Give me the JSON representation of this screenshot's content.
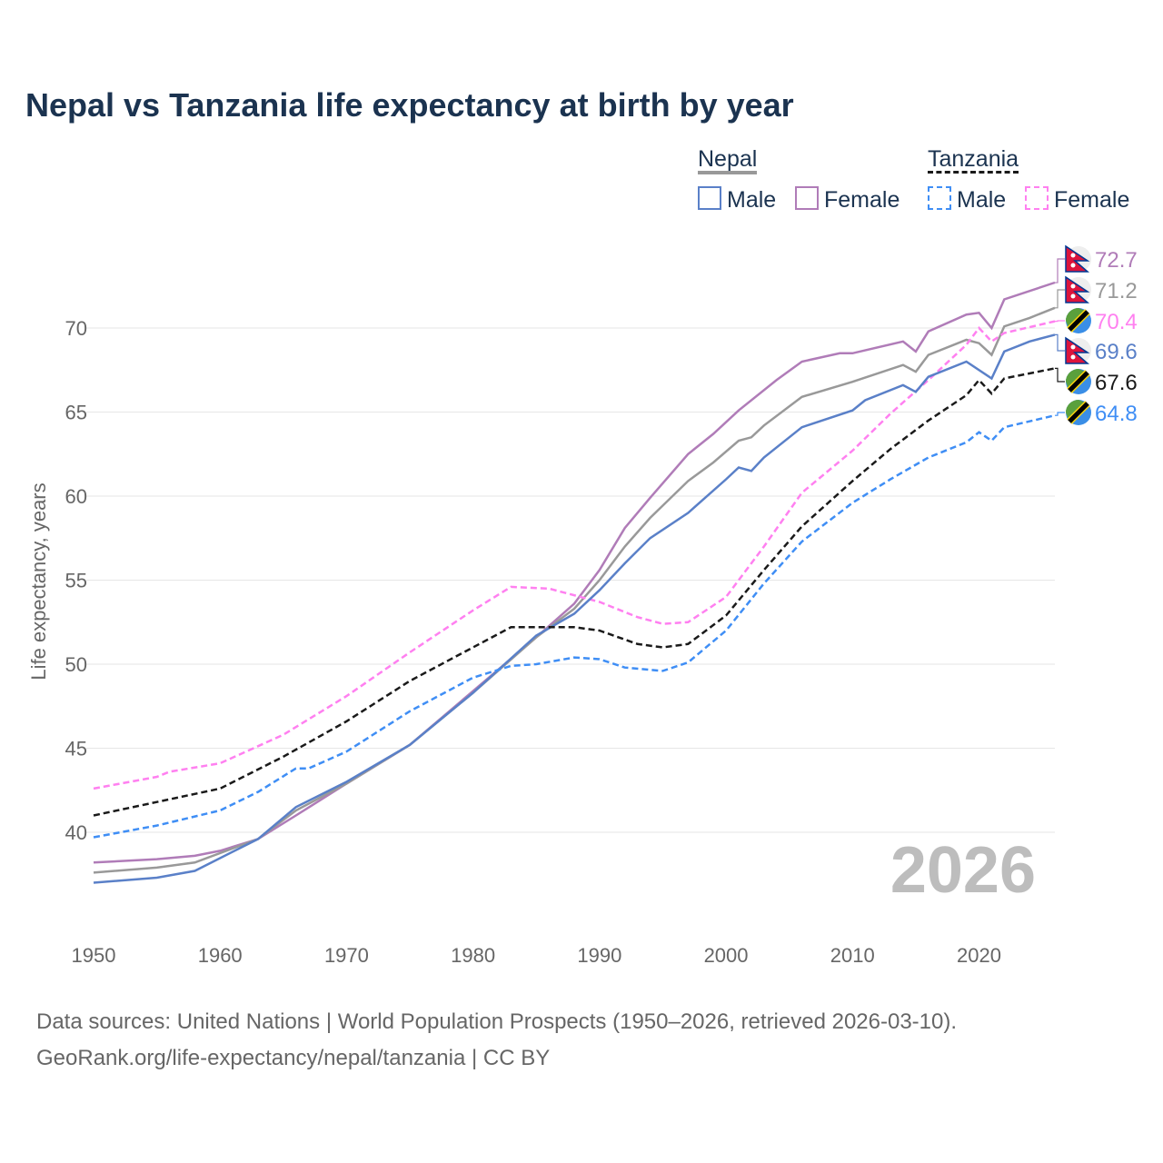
{
  "title": "Nepal vs Tanzania life expectancy at birth by year",
  "legend": {
    "nepal": "Nepal",
    "tanzania": "Tanzania",
    "male": "Male",
    "female": "Female"
  },
  "year_label": "2026",
  "source_line1": "Data sources: United Nations | World Population Prospects (1950–2026, retrieved 2026-03-10).",
  "source_line2": "GeoRank.org/life-expectancy/nepal/tanzania | CC BY",
  "chart_data": {
    "type": "line",
    "title": "Nepal vs Tanzania life expectancy at birth by year",
    "xlabel": "",
    "ylabel": "Life expectancy, years",
    "xlim": [
      1950,
      2026
    ],
    "ylim": [
      35,
      73
    ],
    "xticks": [
      1950,
      1960,
      1970,
      1980,
      1990,
      2000,
      2010,
      2020
    ],
    "yticks": [
      40,
      45,
      50,
      55,
      60,
      65,
      70
    ],
    "grid": true,
    "series": [
      {
        "name": "Nepal Female",
        "color": "#b07cb8",
        "dash": false,
        "end_label": "72.7",
        "flag": "nepal",
        "x": [
          1950,
          1955,
          1958,
          1960,
          1963,
          1966,
          1970,
          1975,
          1980,
          1985,
          1988,
          1990,
          1992,
          1994,
          1997,
          1999,
          2001,
          2004,
          2006,
          2009,
          2010,
          2014,
          2015,
          2016,
          2019,
          2020,
          2021,
          2022,
          2026
        ],
        "y": [
          38.2,
          38.4,
          38.6,
          38.9,
          39.6,
          41.0,
          42.9,
          45.2,
          48.4,
          51.6,
          53.6,
          55.6,
          58.1,
          59.9,
          62.5,
          63.7,
          65.1,
          66.9,
          68.0,
          68.5,
          68.5,
          69.2,
          68.6,
          69.8,
          70.8,
          70.9,
          70.0,
          71.7,
          72.7
        ]
      },
      {
        "name": "Nepal",
        "color": "#999999",
        "dash": false,
        "end_label": "71.2",
        "flag": "nepal",
        "x": [
          1950,
          1955,
          1958,
          1963,
          1966,
          1970,
          1975,
          1980,
          1985,
          1988,
          1990,
          1992,
          1994,
          1997,
          1999,
          2001,
          2002,
          2003,
          2006,
          2010,
          2014,
          2015,
          2016,
          2019,
          2020,
          2021,
          2022,
          2024,
          2026
        ],
        "y": [
          37.6,
          37.9,
          38.2,
          39.6,
          41.3,
          42.9,
          45.2,
          48.3,
          51.6,
          53.3,
          55.0,
          57.0,
          58.7,
          60.9,
          62.0,
          63.3,
          63.5,
          64.2,
          65.9,
          66.8,
          67.8,
          67.4,
          68.4,
          69.3,
          69.1,
          68.4,
          70.1,
          70.6,
          71.2
        ]
      },
      {
        "name": "Tanzania Female",
        "color": "#ff80f0",
        "dash": true,
        "end_label": "70.4",
        "flag": "tanzania",
        "x": [
          1950,
          1955,
          1956,
          1960,
          1965,
          1970,
          1975,
          1980,
          1983,
          1986,
          1990,
          1993,
          1995,
          1997,
          2000,
          2003,
          2006,
          2010,
          2013,
          2016,
          2019,
          2020,
          2021,
          2022,
          2026
        ],
        "y": [
          42.6,
          43.3,
          43.6,
          44.1,
          45.8,
          48.1,
          50.7,
          53.2,
          54.6,
          54.5,
          53.7,
          52.8,
          52.4,
          52.5,
          54.0,
          57.0,
          60.2,
          62.7,
          64.9,
          66.9,
          69.0,
          70.0,
          69.2,
          69.7,
          70.4
        ]
      },
      {
        "name": "Nepal Male",
        "color": "#5a80c8",
        "dash": false,
        "end_label": "69.6",
        "flag": "nepal",
        "x": [
          1950,
          1955,
          1958,
          1963,
          1966,
          1970,
          1975,
          1980,
          1985,
          1988,
          1990,
          1992,
          1994,
          1997,
          2000,
          2001,
          2002,
          2003,
          2006,
          2010,
          2011,
          2014,
          2015,
          2016,
          2019,
          2021,
          2022,
          2024,
          2026
        ],
        "y": [
          37.0,
          37.3,
          37.7,
          39.6,
          41.5,
          43.0,
          45.2,
          48.3,
          51.7,
          53.0,
          54.4,
          56.0,
          57.5,
          59.0,
          61.0,
          61.7,
          61.5,
          62.3,
          64.1,
          65.1,
          65.7,
          66.6,
          66.2,
          67.1,
          68.0,
          67.0,
          68.6,
          69.2,
          69.6
        ]
      },
      {
        "name": "Tanzania",
        "color": "#1a1a1a",
        "dash": true,
        "end_label": "67.6",
        "flag": "tanzania",
        "x": [
          1950,
          1955,
          1960,
          1965,
          1970,
          1975,
          1980,
          1983,
          1988,
          1990,
          1993,
          1995,
          1997,
          2000,
          2003,
          2006,
          2010,
          2013,
          2016,
          2019,
          2020,
          2021,
          2022,
          2026
        ],
        "y": [
          41.0,
          41.8,
          42.6,
          44.5,
          46.6,
          49.0,
          51.0,
          52.2,
          52.2,
          52.0,
          51.2,
          51.0,
          51.2,
          52.9,
          55.6,
          58.2,
          60.9,
          62.8,
          64.5,
          66.0,
          66.9,
          66.1,
          67.0,
          67.6
        ]
      },
      {
        "name": "Tanzania Male",
        "color": "#3f8ef5",
        "dash": true,
        "end_label": "64.8",
        "flag": "tanzania",
        "x": [
          1950,
          1955,
          1960,
          1963,
          1966,
          1967,
          1970,
          1975,
          1980,
          1983,
          1985,
          1988,
          1990,
          1992,
          1995,
          1997,
          2000,
          2003,
          2006,
          2010,
          2013,
          2016,
          2019,
          2020,
          2021,
          2022,
          2026
        ],
        "y": [
          39.7,
          40.4,
          41.3,
          42.4,
          43.8,
          43.8,
          44.8,
          47.2,
          49.2,
          49.9,
          50.0,
          50.4,
          50.3,
          49.8,
          49.6,
          50.1,
          52.0,
          54.8,
          57.3,
          59.6,
          61.0,
          62.3,
          63.2,
          63.8,
          63.3,
          64.1,
          64.8
        ]
      }
    ]
  }
}
